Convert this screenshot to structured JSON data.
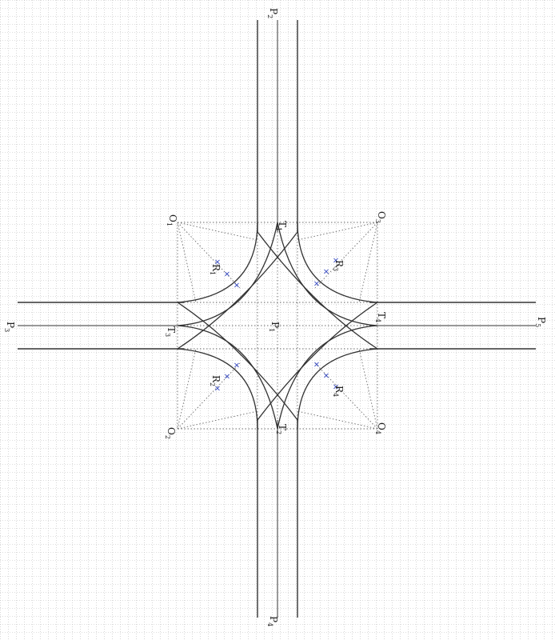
{
  "diagram": {
    "background_color": "#ffffff",
    "grid_color": "#bdbdbd",
    "line_color": "#333333",
    "marker_color": "#2a3fbf",
    "marker_glyph": "×",
    "labels": {
      "P1": {
        "main": "P",
        "sub": "1"
      },
      "P2": {
        "main": "P",
        "sub": "2"
      },
      "P3": {
        "main": "P",
        "sub": "3"
      },
      "P4": {
        "main": "P",
        "sub": "4"
      },
      "P5": {
        "main": "P",
        "sub": "5"
      },
      "T1": {
        "main": "T",
        "sub": "1"
      },
      "T2": {
        "main": "T",
        "sub": "2"
      },
      "T3": {
        "main": "T",
        "sub": "3"
      },
      "T4": {
        "main": "T",
        "sub": "4"
      },
      "O1": {
        "main": "O",
        "sub": "1"
      },
      "O2": {
        "main": "O",
        "sub": "2"
      },
      "O3": {
        "main": "O",
        "sub": "3"
      },
      "O4": {
        "main": "O",
        "sub": "4"
      },
      "R1": {
        "main": "R",
        "sub": "1"
      },
      "R2": {
        "main": "R",
        "sub": "2"
      },
      "R3": {
        "main": "R",
        "sub": "3"
      },
      "R4": {
        "main": "R",
        "sub": "4"
      }
    }
  }
}
